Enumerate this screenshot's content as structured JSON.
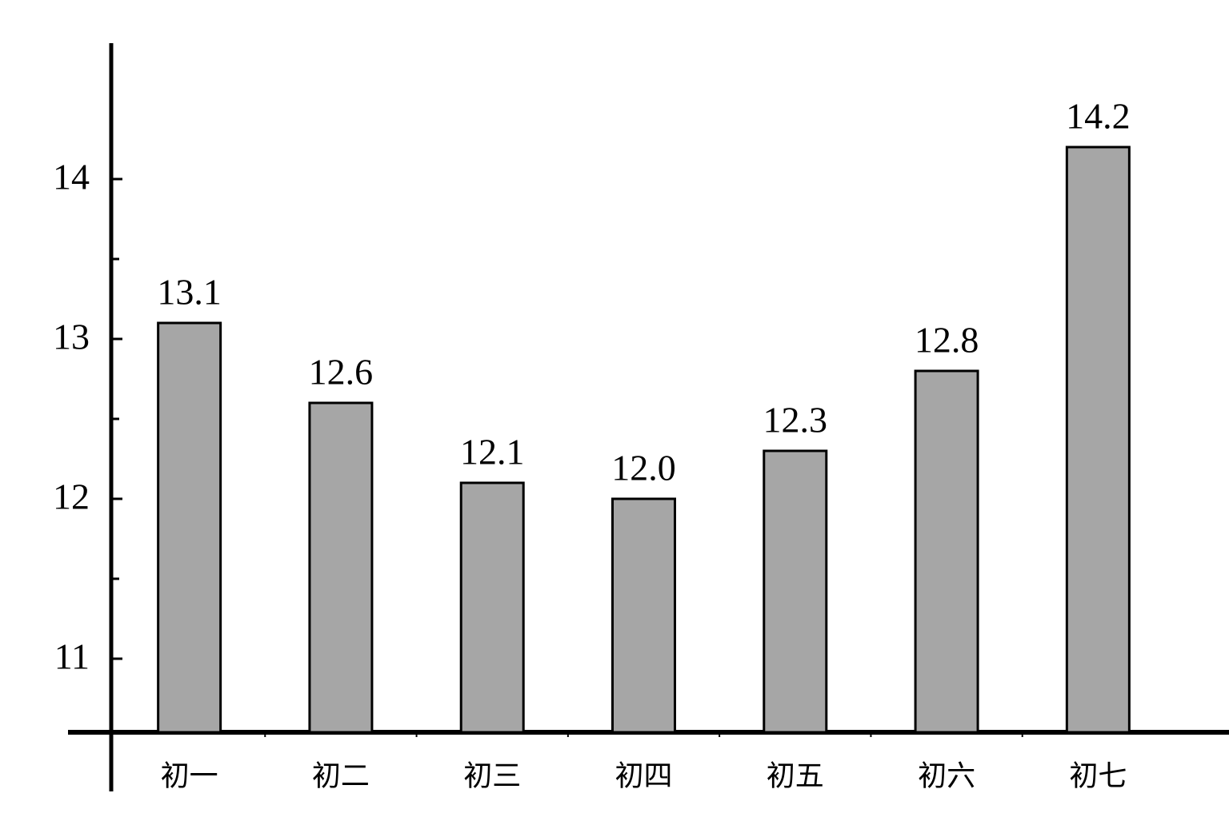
{
  "chart_data": {
    "type": "bar",
    "categories": [
      "初一",
      "初二",
      "初三",
      "初四",
      "初五",
      "初六",
      "初七"
    ],
    "values": [
      13.1,
      12.6,
      12.1,
      12.0,
      12.3,
      12.8,
      14.2
    ],
    "value_labels": [
      "13.1",
      "12.6",
      "12.1",
      "12.0",
      "12.3",
      "12.8",
      "14.2"
    ],
    "color": "#a6a6a6",
    "ylim": [
      10.54,
      14.85
    ],
    "yticks": [
      11,
      12,
      13,
      14
    ],
    "minor_yticks": [
      11.5,
      12.5,
      13.5
    ],
    "grid": false
  }
}
